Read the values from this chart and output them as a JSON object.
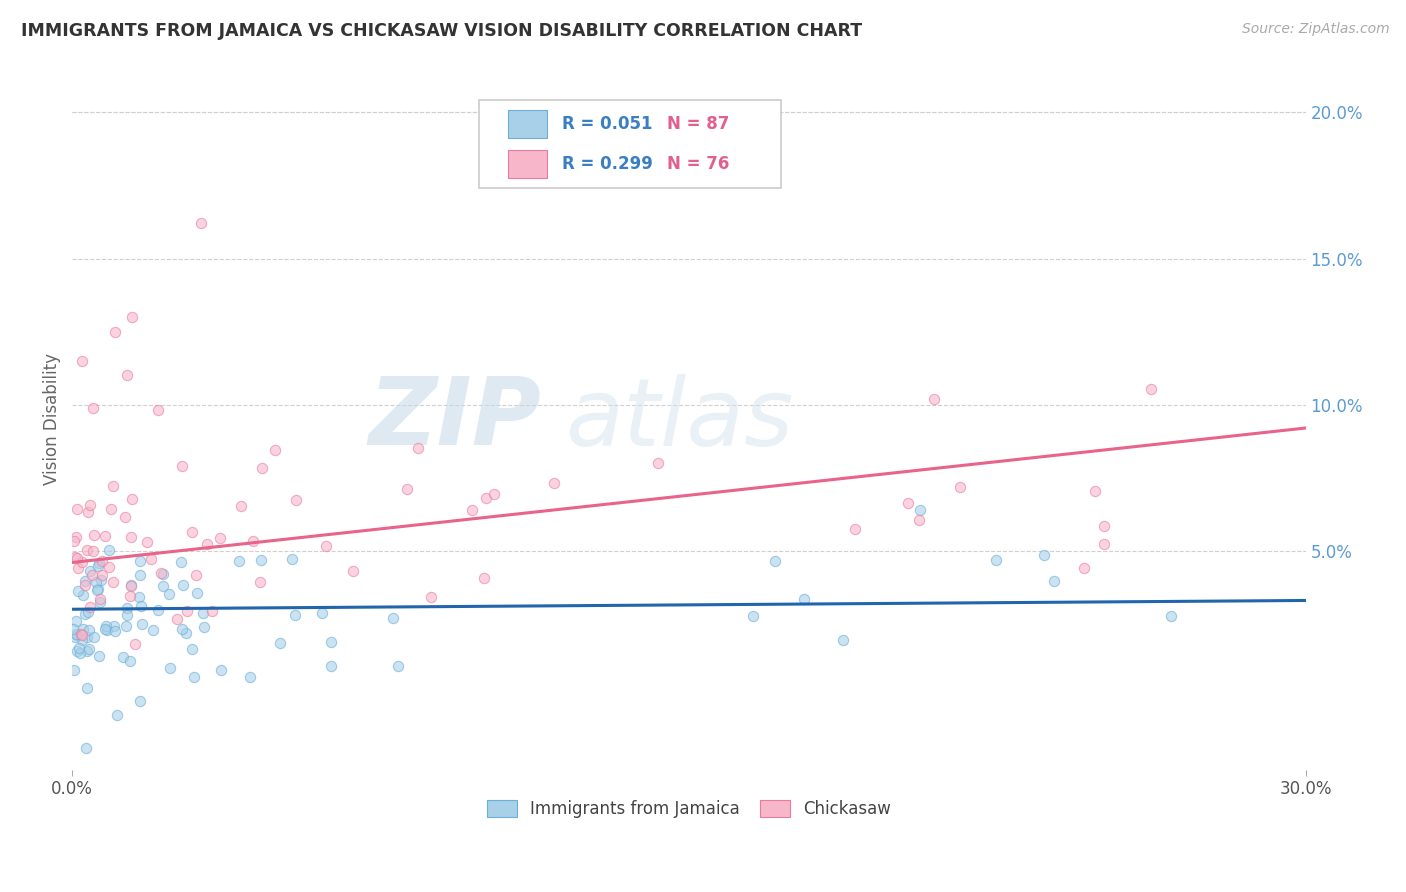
{
  "title": "IMMIGRANTS FROM JAMAICA VS CHICKASAW VISION DISABILITY CORRELATION CHART",
  "source": "Source: ZipAtlas.com",
  "ylabel": "Vision Disability",
  "right_yticks": [
    "20.0%",
    "15.0%",
    "10.0%",
    "5.0%"
  ],
  "right_ytick_vals": [
    0.2,
    0.15,
    0.1,
    0.05
  ],
  "xlim": [
    0.0,
    0.3
  ],
  "ylim": [
    -0.025,
    0.215
  ],
  "color_jamaica": "#a8d0e8",
  "color_jamaica_edge": "#6baed6",
  "color_chickasaw": "#f7b6c9",
  "color_chickasaw_edge": "#e87ca0",
  "color_line_jamaica": "#2166ac",
  "color_line_chickasaw": "#e8648a",
  "watermark_zip": "#c8d8e8",
  "watermark_atlas": "#d8e4ee",
  "background_color": "#ffffff",
  "grid_color": "#d0d0d0",
  "title_color": "#333333",
  "source_color": "#aaaaaa",
  "legend_R1": "R = 0.051",
  "legend_N1": "N = 87",
  "legend_R2": "R = 0.299",
  "legend_N2": "N = 76",
  "legend_color_R": "#3a7fc1",
  "legend_color_N": "#e06090"
}
